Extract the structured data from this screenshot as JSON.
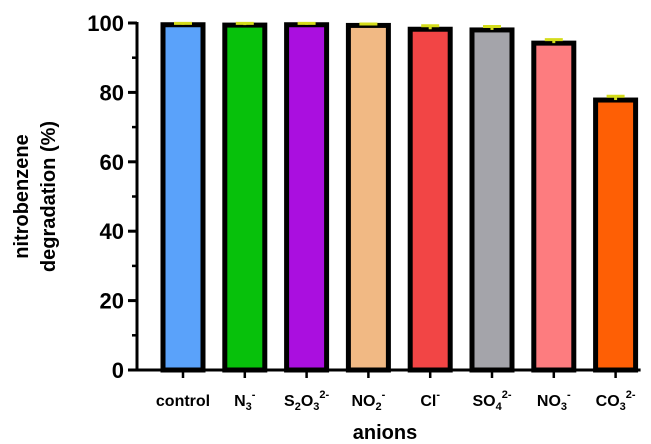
{
  "chart_data": {
    "type": "bar",
    "xlabel": "anions",
    "ylabel_lines": [
      "nitrobenzene",
      "degradation (%)"
    ],
    "ylim": [
      0,
      100
    ],
    "yticks": [
      "0",
      "20",
      "40",
      "60",
      "80",
      "100"
    ],
    "minor_ticks": true,
    "grid": false,
    "categories": [
      {
        "base": "control",
        "sub": "",
        "sup": ""
      },
      {
        "base": "N",
        "sub": "3",
        "sup": "-"
      },
      {
        "base": "S",
        "sub": "2",
        "mid": "O",
        "sub2": "3",
        "sup": "2-"
      },
      {
        "base": "NO",
        "sub": "2",
        "sup": "-"
      },
      {
        "base": "Cl",
        "sub": "",
        "sup": "-"
      },
      {
        "base": "SO",
        "sub": "4",
        "sup": "2-"
      },
      {
        "base": "NO",
        "sub": "3",
        "sup": "-"
      },
      {
        "base": "CO",
        "sub": "3",
        "sup": "2-"
      }
    ],
    "values": [
      99.5,
      99.4,
      99.5,
      99.3,
      98.2,
      98.0,
      94.2,
      77.8
    ],
    "errors": [
      0.4,
      0.5,
      0.4,
      0.4,
      1.0,
      1.0,
      1.0,
      1.1
    ],
    "colors": [
      "#5aa2fa",
      "#07c10b",
      "#aa0fdf",
      "#f1b984",
      "#f24545",
      "#a4a4aa",
      "#fd7c7f",
      "#fe5f05"
    ],
    "error_color": "#d4dc1c",
    "bar_edge_color": "#000000"
  }
}
